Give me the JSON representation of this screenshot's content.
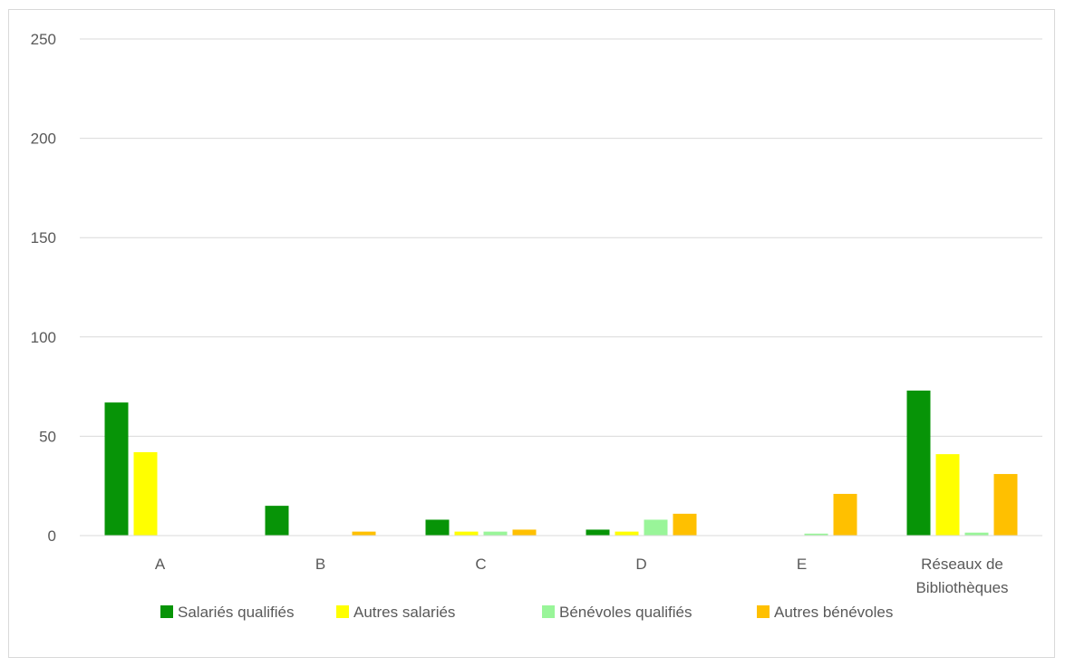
{
  "chart_data": {
    "type": "bar",
    "title": "",
    "xlabel": "",
    "ylabel": "",
    "ylim": [
      0,
      250
    ],
    "yticks": [
      0,
      50,
      100,
      150,
      200,
      250
    ],
    "grid": true,
    "legend_position": "bottom",
    "categories": [
      "A",
      "B",
      "C",
      "D",
      "E",
      "Réseaux de Bibliothèques"
    ],
    "category_lines": [
      [
        "A"
      ],
      [
        "B"
      ],
      [
        "C"
      ],
      [
        "D"
      ],
      [
        "E"
      ],
      [
        "Réseaux de",
        "Bibliothèques"
      ]
    ],
    "series": [
      {
        "name": "Salariés qualifiés",
        "color": "#079407",
        "values": [
          67,
          15,
          8,
          3,
          0,
          73
        ]
      },
      {
        "name": "Autres salariés",
        "color": "#ffff00",
        "values": [
          42,
          0,
          2,
          2,
          0,
          41
        ]
      },
      {
        "name": "Bénévoles qualifiés",
        "color": "#99f599",
        "values": [
          0,
          0,
          2,
          8,
          1,
          1.5
        ]
      },
      {
        "name": "Autres bénévoles",
        "color": "#ffc000",
        "values": [
          0,
          2,
          3,
          11,
          21,
          31
        ]
      }
    ]
  }
}
